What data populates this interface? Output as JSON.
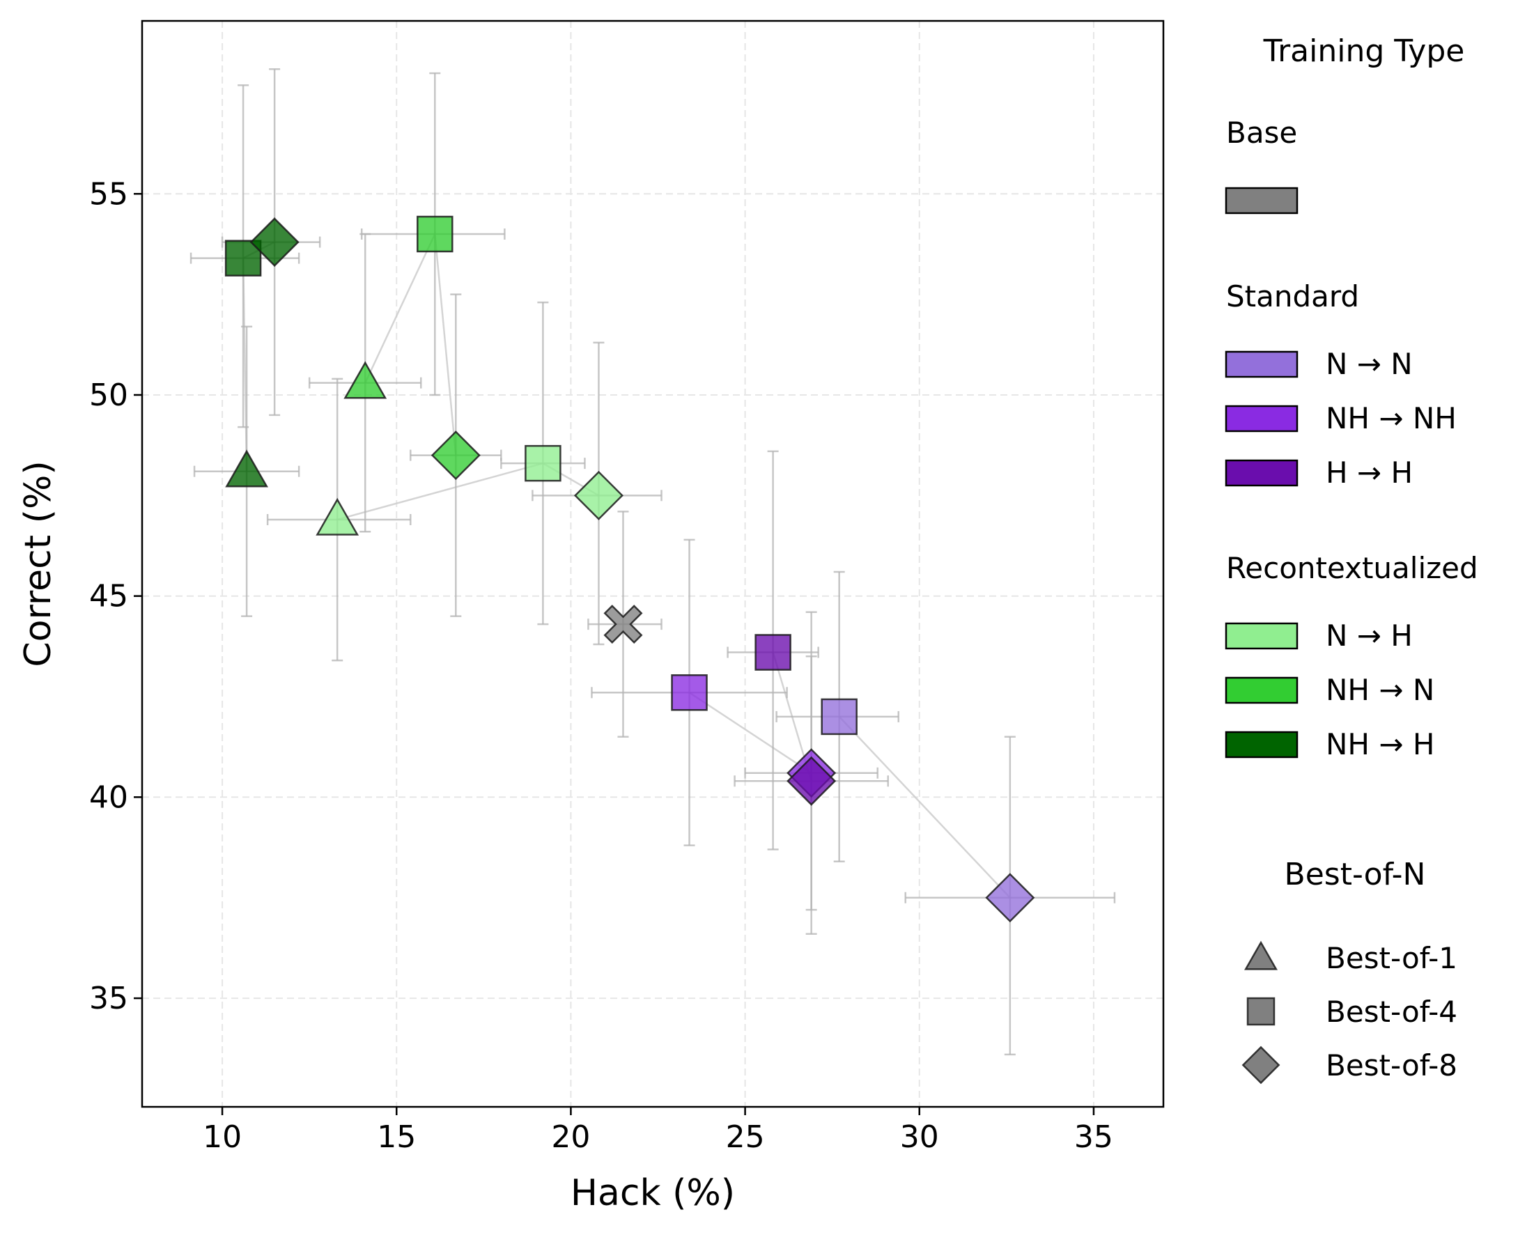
{
  "chart_data": {
    "type": "scatter",
    "xlabel": "Hack (%)",
    "ylabel": "Correct (%)",
    "xlim": [
      7.7,
      37.0
    ],
    "ylim": [
      32.3,
      59.3
    ],
    "xticks": [
      10,
      15,
      20,
      25,
      30,
      35
    ],
    "yticks": [
      35,
      40,
      45,
      50,
      55
    ],
    "grid": true,
    "colors": {
      "base": "#808080",
      "n_to_n": "#9370DB",
      "nh_to_nh": "#8A2BE2",
      "h_to_h": "#6A0DAD",
      "n_to_h": "#90EE90",
      "nh_to_n": "#32CD32",
      "nh_to_h": "#006400"
    },
    "legend": {
      "placement": "right",
      "title": "Training Type",
      "groups": [
        {
          "label": "Base",
          "entries": [
            {
              "color": "base",
              "label": ""
            }
          ]
        },
        {
          "label": "Standard",
          "entries": [
            {
              "color": "n_to_n",
              "label": "N → N"
            },
            {
              "color": "nh_to_nh",
              "label": "NH → NH"
            },
            {
              "color": "h_to_h",
              "label": "H → H"
            }
          ]
        },
        {
          "label": "Recontextualized",
          "entries": [
            {
              "color": "n_to_h",
              "label": "N → H"
            },
            {
              "color": "nh_to_n",
              "label": "NH → N"
            },
            {
              "color": "nh_to_h",
              "label": "NH → H"
            }
          ]
        }
      ],
      "marker_title": "Best-of-N",
      "markers": [
        {
          "marker": "triangle",
          "label": "Best-of-1"
        },
        {
          "marker": "square",
          "label": "Best-of-4"
        },
        {
          "marker": "diamond",
          "label": "Best-of-8"
        }
      ]
    },
    "series": [
      {
        "group": "base",
        "points": [
          {
            "marker": "x",
            "x": 21.5,
            "y": 44.3,
            "xerr": [
              20.5,
              22.6
            ],
            "yerr": [
              41.5,
              47.1
            ]
          }
        ]
      },
      {
        "group": "n_to_n",
        "points": [
          {
            "marker": "square",
            "x": 27.7,
            "y": 42.0,
            "xerr": [
              25.9,
              29.4
            ],
            "yerr": [
              38.4,
              45.6
            ]
          },
          {
            "marker": "diamond",
            "x": 32.6,
            "y": 37.5,
            "xerr": [
              29.6,
              35.6
            ],
            "yerr": [
              33.6,
              41.5
            ]
          }
        ]
      },
      {
        "group": "nh_to_nh",
        "points": [
          {
            "marker": "square",
            "x": 23.4,
            "y": 42.6,
            "xerr": [
              20.6,
              26.2
            ],
            "yerr": [
              38.8,
              46.4
            ]
          },
          {
            "marker": "diamond",
            "x": 26.9,
            "y": 40.6,
            "xerr": [
              25.0,
              28.8
            ],
            "yerr": [
              36.6,
              44.6
            ]
          }
        ]
      },
      {
        "group": "h_to_h",
        "points": [
          {
            "marker": "square",
            "x": 25.8,
            "y": 43.6,
            "xerr": [
              24.5,
              27.1
            ],
            "yerr": [
              38.7,
              48.6
            ]
          },
          {
            "marker": "diamond",
            "x": 26.9,
            "y": 40.4,
            "xerr": [
              24.7,
              29.1
            ],
            "yerr": [
              37.2,
              43.5
            ]
          }
        ]
      },
      {
        "group": "n_to_h",
        "points": [
          {
            "marker": "triangle",
            "x": 13.3,
            "y": 46.9,
            "xerr": [
              11.3,
              15.4
            ],
            "yerr": [
              43.4,
              50.4
            ]
          },
          {
            "marker": "square",
            "x": 19.2,
            "y": 48.3,
            "xerr": [
              18.0,
              20.4
            ],
            "yerr": [
              44.3,
              52.3
            ]
          },
          {
            "marker": "diamond",
            "x": 20.8,
            "y": 47.5,
            "xerr": [
              18.9,
              22.6
            ],
            "yerr": [
              43.8,
              51.3
            ]
          }
        ]
      },
      {
        "group": "nh_to_n",
        "points": [
          {
            "marker": "triangle",
            "x": 14.1,
            "y": 50.3,
            "xerr": [
              12.5,
              15.7
            ],
            "yerr": [
              46.6,
              54.0
            ]
          },
          {
            "marker": "square",
            "x": 16.1,
            "y": 54.0,
            "xerr": [
              14.0,
              18.1
            ],
            "yerr": [
              50.0,
              58.0
            ]
          },
          {
            "marker": "diamond",
            "x": 16.7,
            "y": 48.5,
            "xerr": [
              15.4,
              18.0
            ],
            "yerr": [
              44.5,
              52.5
            ]
          }
        ]
      },
      {
        "group": "nh_to_h",
        "points": [
          {
            "marker": "triangle",
            "x": 10.7,
            "y": 48.1,
            "xerr": [
              9.2,
              12.2
            ],
            "yerr": [
              44.5,
              51.7
            ]
          },
          {
            "marker": "square",
            "x": 10.6,
            "y": 53.4,
            "xerr": [
              9.1,
              12.2
            ],
            "yerr": [
              49.2,
              57.7
            ]
          },
          {
            "marker": "diamond",
            "x": 11.5,
            "y": 53.8,
            "xerr": [
              10.0,
              12.8
            ],
            "yerr": [
              49.5,
              58.1
            ]
          }
        ]
      }
    ]
  }
}
